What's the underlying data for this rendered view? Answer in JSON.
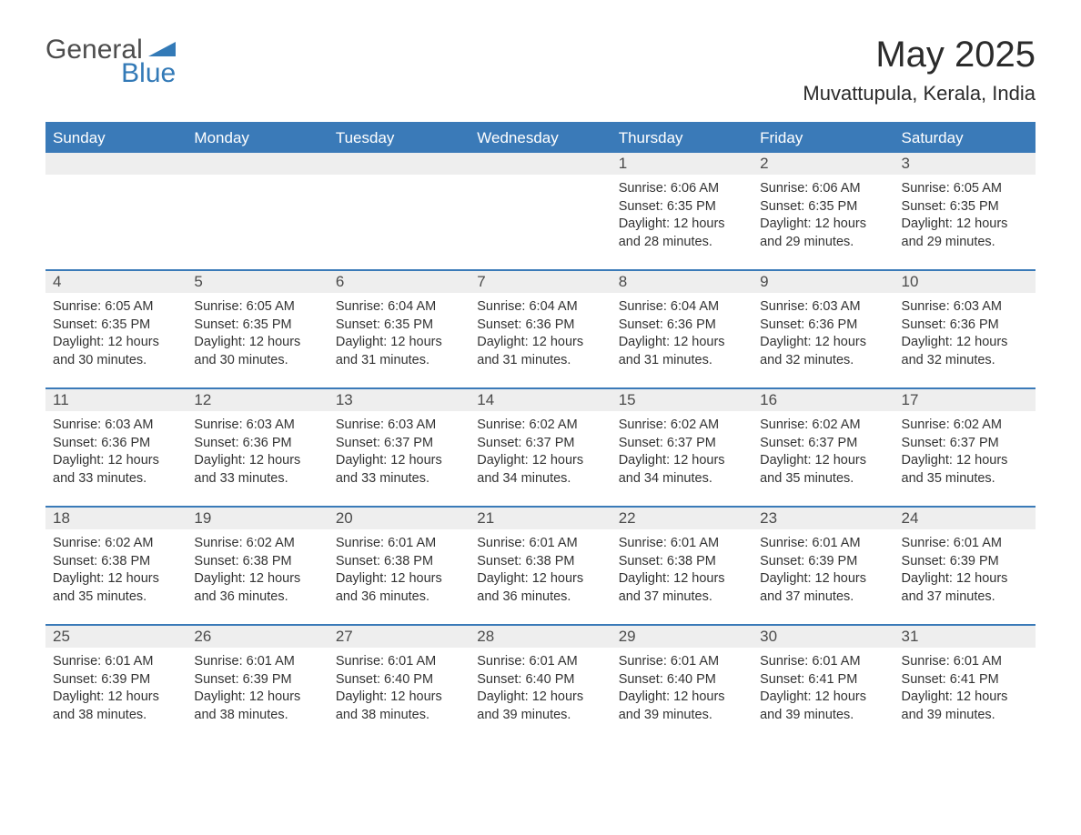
{
  "brand": {
    "word1": "General",
    "word2": "Blue",
    "accent_color": "#337ab7",
    "text_color": "#4d4d4d"
  },
  "title": "May 2025",
  "location": "Muvattupula, Kerala, India",
  "colors": {
    "header_bg": "#3a7ab8",
    "header_text": "#ffffff",
    "row_divider": "#3a7ab8",
    "daynum_bg": "#eeeeee",
    "daynum_text": "#4b4b4b",
    "body_text": "#333333",
    "page_bg": "#ffffff"
  },
  "weekdays": [
    "Sunday",
    "Monday",
    "Tuesday",
    "Wednesday",
    "Thursday",
    "Friday",
    "Saturday"
  ],
  "weeks": [
    [
      null,
      null,
      null,
      null,
      {
        "n": "1",
        "sunrise": "6:06 AM",
        "sunset": "6:35 PM",
        "daylight": "12 hours and 28 minutes."
      },
      {
        "n": "2",
        "sunrise": "6:06 AM",
        "sunset": "6:35 PM",
        "daylight": "12 hours and 29 minutes."
      },
      {
        "n": "3",
        "sunrise": "6:05 AM",
        "sunset": "6:35 PM",
        "daylight": "12 hours and 29 minutes."
      }
    ],
    [
      {
        "n": "4",
        "sunrise": "6:05 AM",
        "sunset": "6:35 PM",
        "daylight": "12 hours and 30 minutes."
      },
      {
        "n": "5",
        "sunrise": "6:05 AM",
        "sunset": "6:35 PM",
        "daylight": "12 hours and 30 minutes."
      },
      {
        "n": "6",
        "sunrise": "6:04 AM",
        "sunset": "6:35 PM",
        "daylight": "12 hours and 31 minutes."
      },
      {
        "n": "7",
        "sunrise": "6:04 AM",
        "sunset": "6:36 PM",
        "daylight": "12 hours and 31 minutes."
      },
      {
        "n": "8",
        "sunrise": "6:04 AM",
        "sunset": "6:36 PM",
        "daylight": "12 hours and 31 minutes."
      },
      {
        "n": "9",
        "sunrise": "6:03 AM",
        "sunset": "6:36 PM",
        "daylight": "12 hours and 32 minutes."
      },
      {
        "n": "10",
        "sunrise": "6:03 AM",
        "sunset": "6:36 PM",
        "daylight": "12 hours and 32 minutes."
      }
    ],
    [
      {
        "n": "11",
        "sunrise": "6:03 AM",
        "sunset": "6:36 PM",
        "daylight": "12 hours and 33 minutes."
      },
      {
        "n": "12",
        "sunrise": "6:03 AM",
        "sunset": "6:36 PM",
        "daylight": "12 hours and 33 minutes."
      },
      {
        "n": "13",
        "sunrise": "6:03 AM",
        "sunset": "6:37 PM",
        "daylight": "12 hours and 33 minutes."
      },
      {
        "n": "14",
        "sunrise": "6:02 AM",
        "sunset": "6:37 PM",
        "daylight": "12 hours and 34 minutes."
      },
      {
        "n": "15",
        "sunrise": "6:02 AM",
        "sunset": "6:37 PM",
        "daylight": "12 hours and 34 minutes."
      },
      {
        "n": "16",
        "sunrise": "6:02 AM",
        "sunset": "6:37 PM",
        "daylight": "12 hours and 35 minutes."
      },
      {
        "n": "17",
        "sunrise": "6:02 AM",
        "sunset": "6:37 PM",
        "daylight": "12 hours and 35 minutes."
      }
    ],
    [
      {
        "n": "18",
        "sunrise": "6:02 AM",
        "sunset": "6:38 PM",
        "daylight": "12 hours and 35 minutes."
      },
      {
        "n": "19",
        "sunrise": "6:02 AM",
        "sunset": "6:38 PM",
        "daylight": "12 hours and 36 minutes."
      },
      {
        "n": "20",
        "sunrise": "6:01 AM",
        "sunset": "6:38 PM",
        "daylight": "12 hours and 36 minutes."
      },
      {
        "n": "21",
        "sunrise": "6:01 AM",
        "sunset": "6:38 PM",
        "daylight": "12 hours and 36 minutes."
      },
      {
        "n": "22",
        "sunrise": "6:01 AM",
        "sunset": "6:38 PM",
        "daylight": "12 hours and 37 minutes."
      },
      {
        "n": "23",
        "sunrise": "6:01 AM",
        "sunset": "6:39 PM",
        "daylight": "12 hours and 37 minutes."
      },
      {
        "n": "24",
        "sunrise": "6:01 AM",
        "sunset": "6:39 PM",
        "daylight": "12 hours and 37 minutes."
      }
    ],
    [
      {
        "n": "25",
        "sunrise": "6:01 AM",
        "sunset": "6:39 PM",
        "daylight": "12 hours and 38 minutes."
      },
      {
        "n": "26",
        "sunrise": "6:01 AM",
        "sunset": "6:39 PM",
        "daylight": "12 hours and 38 minutes."
      },
      {
        "n": "27",
        "sunrise": "6:01 AM",
        "sunset": "6:40 PM",
        "daylight": "12 hours and 38 minutes."
      },
      {
        "n": "28",
        "sunrise": "6:01 AM",
        "sunset": "6:40 PM",
        "daylight": "12 hours and 39 minutes."
      },
      {
        "n": "29",
        "sunrise": "6:01 AM",
        "sunset": "6:40 PM",
        "daylight": "12 hours and 39 minutes."
      },
      {
        "n": "30",
        "sunrise": "6:01 AM",
        "sunset": "6:41 PM",
        "daylight": "12 hours and 39 minutes."
      },
      {
        "n": "31",
        "sunrise": "6:01 AM",
        "sunset": "6:41 PM",
        "daylight": "12 hours and 39 minutes."
      }
    ]
  ],
  "labels": {
    "sunrise": "Sunrise:",
    "sunset": "Sunset:",
    "daylight": "Daylight:"
  }
}
